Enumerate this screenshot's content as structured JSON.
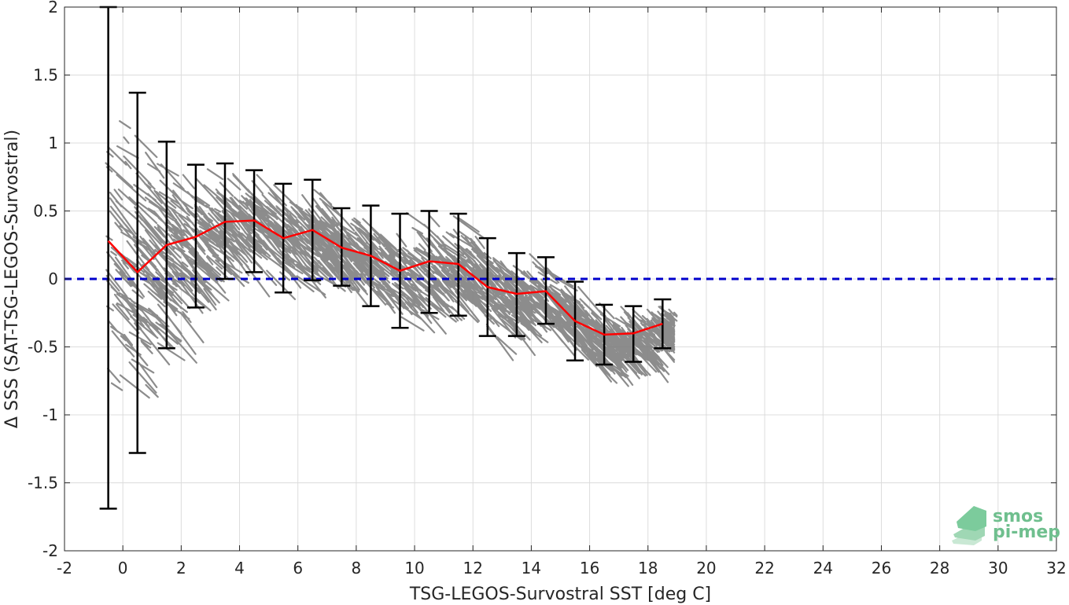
{
  "chart_data": {
    "type": "scatter",
    "xlabel": "TSG-LEGOS-Survostral SST [deg C]",
    "ylabel": "Δ SSS (SAT-TSG-LEGOS-Survostral)",
    "xlim": [
      -2,
      32
    ],
    "ylim": [
      -2,
      2
    ],
    "x_ticks": [
      -2,
      0,
      2,
      4,
      6,
      8,
      10,
      12,
      14,
      16,
      18,
      20,
      22,
      24,
      26,
      28,
      30,
      32
    ],
    "y_ticks": [
      -2,
      -1.5,
      -1,
      -0.5,
      0,
      0.5,
      1,
      1.5,
      2
    ],
    "x_tick_labels": [
      "-2",
      "0",
      "2",
      "4",
      "6",
      "8",
      "10",
      "12",
      "14",
      "16",
      "18",
      "20",
      "22",
      "24",
      "26",
      "28",
      "30",
      "32"
    ],
    "y_tick_labels": [
      "-2",
      "-1.5",
      "-1",
      "-0.5",
      "0",
      "0.5",
      "1",
      "1.5",
      "2"
    ],
    "grid": true,
    "zero_line": {
      "y": 0,
      "color": "#0000cc",
      "style": "dashed"
    },
    "scatter_color": "#808080",
    "mean_line_color": "#ff0000",
    "errorbar_color": "#000000",
    "binned": {
      "x": [
        -0.5,
        0.5,
        1.5,
        2.5,
        3.5,
        4.5,
        5.5,
        6.5,
        7.5,
        8.5,
        9.5,
        10.5,
        11.5,
        12.5,
        13.5,
        14.5,
        15.5,
        16.5,
        17.5,
        18.5
      ],
      "mean": [
        0.28,
        0.05,
        0.25,
        0.31,
        0.42,
        0.43,
        0.3,
        0.36,
        0.23,
        0.17,
        0.06,
        0.13,
        0.11,
        -0.06,
        -0.11,
        -0.09,
        -0.31,
        -0.41,
        -0.4,
        -0.33
      ],
      "upper": [
        2.0,
        1.37,
        1.01,
        0.84,
        0.85,
        0.8,
        0.7,
        0.73,
        0.52,
        0.54,
        0.48,
        0.5,
        0.48,
        0.3,
        0.19,
        0.16,
        -0.02,
        -0.19,
        -0.2,
        -0.15
      ],
      "lower": [
        -1.69,
        -1.28,
        -0.51,
        -0.21,
        0.0,
        0.05,
        -0.1,
        -0.01,
        -0.05,
        -0.2,
        -0.36,
        -0.25,
        -0.27,
        -0.42,
        -0.42,
        -0.33,
        -0.6,
        -0.63,
        -0.61,
        -0.51
      ]
    },
    "logo": {
      "line1": "smos",
      "line2": "pi-mep"
    }
  }
}
